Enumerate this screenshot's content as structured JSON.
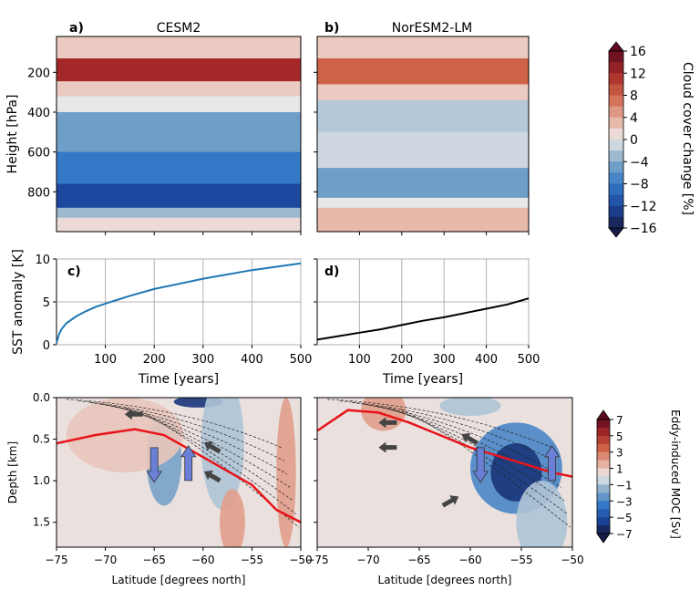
{
  "chart_data": [
    {
      "type": "heatmap",
      "panel_label": "a)",
      "title": "CESM2",
      "ylabel": "Height [hPa]",
      "ylim": [
        1000,
        20
      ],
      "yticks": [
        "200",
        "400",
        "600",
        "800"
      ],
      "xlim": [
        0,
        500
      ],
      "bands": [
        {
          "from": 20,
          "to": 130,
          "value": 2
        },
        {
          "from": 130,
          "to": 245,
          "value": 12
        },
        {
          "from": 245,
          "to": 320,
          "value": 2
        },
        {
          "from": 320,
          "to": 400,
          "value": 0
        },
        {
          "from": 400,
          "to": 600,
          "value": -5
        },
        {
          "from": 600,
          "to": 760,
          "value": -8
        },
        {
          "from": 760,
          "to": 880,
          "value": -12
        },
        {
          "from": 880,
          "to": 930,
          "value": -3
        },
        {
          "from": 930,
          "to": 1000,
          "value": 1
        }
      ]
    },
    {
      "type": "heatmap",
      "panel_label": "b)",
      "title": "NorESM2-LM",
      "ylim": [
        1000,
        20
      ],
      "xlim": [
        0,
        500
      ],
      "bands": [
        {
          "from": 20,
          "to": 130,
          "value": 2
        },
        {
          "from": 130,
          "to": 260,
          "value": 8
        },
        {
          "from": 260,
          "to": 340,
          "value": 2
        },
        {
          "from": 340,
          "to": 500,
          "value": -2
        },
        {
          "from": 500,
          "to": 680,
          "value": -1
        },
        {
          "from": 680,
          "to": 830,
          "value": -5
        },
        {
          "from": 830,
          "to": 880,
          "value": 0
        },
        {
          "from": 880,
          "to": 1000,
          "value": 3
        }
      ]
    },
    {
      "type": "line",
      "panel_label": "c)",
      "xlabel": "Time [years]",
      "ylabel": "SST anomaly [K]",
      "xlim": [
        0,
        500
      ],
      "ylim": [
        0,
        10
      ],
      "xticks": [
        "100",
        "200",
        "300",
        "400",
        "500"
      ],
      "yticks": [
        "0",
        "5",
        "10"
      ],
      "grid": true,
      "series": [
        {
          "name": "CESM2",
          "color": "#1f77b4",
          "x": [
            0,
            5,
            10,
            20,
            40,
            60,
            80,
            100,
            150,
            200,
            250,
            300,
            350,
            400,
            450,
            500
          ],
          "values": [
            0.2,
            1.2,
            1.8,
            2.5,
            3.3,
            3.9,
            4.4,
            4.8,
            5.7,
            6.5,
            7.1,
            7.7,
            8.2,
            8.7,
            9.1,
            9.5
          ]
        }
      ]
    },
    {
      "type": "line",
      "panel_label": "d)",
      "xlabel": "Time [years]",
      "xlim": [
        0,
        500
      ],
      "ylim": [
        0,
        10
      ],
      "xticks": [
        "100",
        "200",
        "300",
        "400",
        "500"
      ],
      "grid": true,
      "series": [
        {
          "name": "NorESM2-LM",
          "color": "#000000",
          "x": [
            0,
            50,
            100,
            150,
            200,
            250,
            300,
            350,
            400,
            450,
            500
          ],
          "values": [
            0.6,
            1.0,
            1.4,
            1.8,
            2.3,
            2.8,
            3.2,
            3.7,
            4.2,
            4.7,
            5.4
          ]
        }
      ]
    },
    {
      "type": "heatmap",
      "xlabel": "Latitude [degrees north]",
      "ylabel": "Depth [km]",
      "xlim": [
        -75,
        -50
      ],
      "ylim": [
        1.8,
        0
      ],
      "xticks": [
        "−75",
        "−70",
        "−65",
        "−60",
        "−55",
        "−50"
      ],
      "yticks": [
        "0.0",
        "0.5",
        "1.0",
        "1.5"
      ],
      "blobs": [
        {
          "lon": -60.5,
          "depth": 0.05,
          "rx": 2.5,
          "ry": 0.07,
          "value": -6
        },
        {
          "lon": -64,
          "depth": 0.75,
          "rx": 1.8,
          "ry": 0.55,
          "value": -2
        },
        {
          "lon": -58,
          "depth": 0.55,
          "rx": 2.2,
          "ry": 0.8,
          "value": -1
        },
        {
          "lon": -57,
          "depth": 1.5,
          "rx": 1.3,
          "ry": 0.4,
          "value": 2
        },
        {
          "lon": -51.5,
          "depth": 0.9,
          "rx": 1.0,
          "ry": 0.9,
          "value": 2
        },
        {
          "lon": -68,
          "depth": 0.45,
          "rx": 6,
          "ry": 0.45,
          "value": 1
        }
      ],
      "zero_contour": [
        [
          -75,
          0.55
        ],
        [
          -71,
          0.45
        ],
        [
          -67,
          0.38
        ],
        [
          -64,
          0.45
        ],
        [
          -61,
          0.65
        ],
        [
          -58,
          0.85
        ],
        [
          -55,
          1.05
        ],
        [
          -52.5,
          1.35
        ],
        [
          -50,
          1.5
        ]
      ],
      "transport_arrows": [
        {
          "lon": -67,
          "depth": 0.2,
          "direction": "west"
        },
        {
          "lon": -59,
          "depth": 0.6,
          "direction": "northwest"
        },
        {
          "lon": -59,
          "depth": 0.95,
          "direction": "northwest"
        }
      ],
      "moc_arrows": [
        {
          "lon": -65,
          "depth": 0.8,
          "direction": "down"
        },
        {
          "lon": -61.5,
          "depth": 0.8,
          "direction": "up"
        }
      ]
    },
    {
      "type": "heatmap",
      "xlabel": "Latitude [degrees north]",
      "xlim": [
        -75,
        -50
      ],
      "ylim": [
        1.8,
        0
      ],
      "xticks": [
        "−75",
        "−70",
        "−65",
        "−60",
        "−55",
        "−50"
      ],
      "blobs": [
        {
          "lon": -68.5,
          "depth": 0.15,
          "rx": 2.2,
          "ry": 0.25,
          "value": 2
        },
        {
          "lon": -55.5,
          "depth": 0.85,
          "rx": 4.5,
          "ry": 0.55,
          "value": -3
        },
        {
          "lon": -55.5,
          "depth": 0.9,
          "rx": 2.5,
          "ry": 0.35,
          "value": -6
        },
        {
          "lon": -60,
          "depth": 0.1,
          "rx": 3,
          "ry": 0.12,
          "value": -1
        },
        {
          "lon": -53,
          "depth": 1.5,
          "rx": 2.5,
          "ry": 0.5,
          "value": -1
        }
      ],
      "zero_contour": [
        [
          -75,
          0.4
        ],
        [
          -72,
          0.15
        ],
        [
          -69,
          0.18
        ],
        [
          -66,
          0.3
        ],
        [
          -63,
          0.45
        ],
        [
          -60,
          0.6
        ],
        [
          -56,
          0.75
        ],
        [
          -52,
          0.9
        ],
        [
          -50,
          0.95
        ]
      ],
      "transport_arrows": [
        {
          "lon": -68,
          "depth": 0.3,
          "direction": "west"
        },
        {
          "lon": -68,
          "depth": 0.6,
          "direction": "west"
        },
        {
          "lon": -60,
          "depth": 0.5,
          "direction": "northwest"
        },
        {
          "lon": -62,
          "depth": 1.25,
          "direction": "northeast"
        }
      ],
      "moc_arrows": [
        {
          "lon": -59,
          "depth": 0.8,
          "direction": "down"
        },
        {
          "lon": -52,
          "depth": 0.8,
          "direction": "up"
        }
      ]
    },
    {
      "type": "colorbar",
      "label": "Cloud cover change [%]",
      "ticks": [
        "16",
        "12",
        "8",
        "4",
        "0",
        "−4",
        "−8",
        "−12",
        "−16"
      ],
      "range": [
        -16,
        16
      ]
    },
    {
      "type": "colorbar",
      "label": "Eddy-induced MOC [Sv]",
      "ticks": [
        "7",
        "5",
        "3",
        "1",
        "−1",
        "−3",
        "−5",
        "−7"
      ],
      "range": [
        -7,
        7
      ]
    }
  ]
}
